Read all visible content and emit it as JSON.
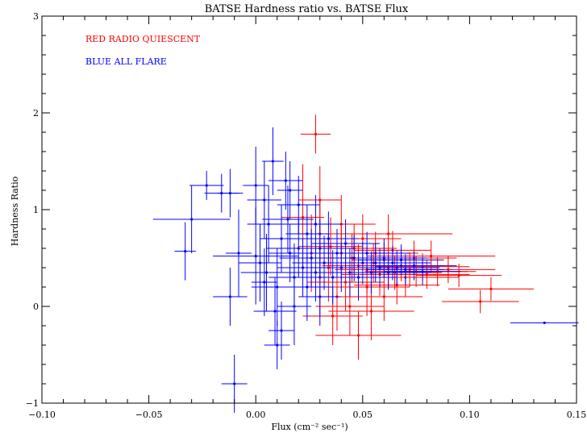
{
  "chart_data": {
    "type": "scatter",
    "title": "BATSE Hardness ratio vs. BATSE Flux",
    "xlabel": "Flux (cm⁻² sec⁻¹)",
    "ylabel": "Hardness Ratio",
    "xlim": [
      -0.1,
      0.15
    ],
    "ylim": [
      -1,
      3
    ],
    "xticks": [
      -0.1,
      -0.05,
      0.0,
      0.05,
      0.1,
      0.15
    ],
    "xtick_labels": [
      "−0.10",
      "−0.05",
      "0.00",
      "0.05",
      "0.10",
      "0.15"
    ],
    "yticks": [
      -1,
      0,
      1,
      2,
      3
    ],
    "ytick_labels": [
      "−1",
      "0",
      "1",
      "2",
      "3"
    ],
    "legend_placement": "top-left",
    "error_bars": true,
    "series": [
      {
        "name": "RED RADIO QUIESCENT",
        "color": "#ff0000",
        "points": [
          [
            0.028,
            1.78,
            0.007,
            0.2
          ],
          [
            0.022,
            0.92,
            0.01,
            0.55
          ],
          [
            0.03,
            0.75,
            0.012,
            0.35
          ],
          [
            0.035,
            0.62,
            0.015,
            0.3
          ],
          [
            0.04,
            0.55,
            0.016,
            0.28
          ],
          [
            0.045,
            0.5,
            0.018,
            0.25
          ],
          [
            0.048,
            0.42,
            0.017,
            0.22
          ],
          [
            0.052,
            0.38,
            0.015,
            0.25
          ],
          [
            0.055,
            0.45,
            0.02,
            0.2
          ],
          [
            0.058,
            0.33,
            0.018,
            0.22
          ],
          [
            0.06,
            0.48,
            0.015,
            0.18
          ],
          [
            0.062,
            0.4,
            0.02,
            0.2
          ],
          [
            0.065,
            0.35,
            0.022,
            0.18
          ],
          [
            0.068,
            0.42,
            0.02,
            0.16
          ],
          [
            0.07,
            0.3,
            0.025,
            0.2
          ],
          [
            0.072,
            0.38,
            0.02,
            0.18
          ],
          [
            0.075,
            0.36,
            0.024,
            0.16
          ],
          [
            0.078,
            0.41,
            0.022,
            0.14
          ],
          [
            0.08,
            0.33,
            0.02,
            0.15
          ],
          [
            0.085,
            0.36,
            0.018,
            0.15
          ],
          [
            0.09,
            0.38,
            0.022,
            0.14
          ],
          [
            0.095,
            0.32,
            0.02,
            0.12
          ],
          [
            0.11,
            0.18,
            0.02,
            0.12
          ],
          [
            0.105,
            0.05,
            0.018,
            0.12
          ],
          [
            0.042,
            0.25,
            0.018,
            0.3
          ],
          [
            0.038,
            0.1,
            0.015,
            0.35
          ],
          [
            0.044,
            0.0,
            0.016,
            0.3
          ],
          [
            0.036,
            -0.1,
            0.014,
            0.3
          ],
          [
            0.046,
            0.6,
            0.02,
            0.25
          ],
          [
            0.05,
            0.7,
            0.018,
            0.25
          ],
          [
            0.052,
            0.2,
            0.02,
            0.3
          ],
          [
            0.056,
            0.55,
            0.02,
            0.22
          ],
          [
            0.064,
            0.58,
            0.018,
            0.2
          ],
          [
            0.066,
            0.22,
            0.02,
            0.2
          ],
          [
            0.074,
            0.5,
            0.02,
            0.18
          ],
          [
            0.054,
            -0.05,
            0.02,
            0.3
          ],
          [
            0.06,
            0.1,
            0.018,
            0.25
          ],
          [
            0.034,
            0.4,
            0.015,
            0.35
          ],
          [
            0.03,
            0.3,
            0.014,
            0.4
          ],
          [
            0.026,
            0.55,
            0.012,
            0.4
          ],
          [
            0.04,
            0.85,
            0.016,
            0.3
          ],
          [
            0.062,
            0.75,
            0.03,
            0.2
          ],
          [
            0.048,
            -0.3,
            0.02,
            0.25
          ],
          [
            0.082,
            0.52,
            0.03,
            0.16
          ],
          [
            0.03,
            1.1,
            0.01,
            0.35
          ]
        ]
      },
      {
        "name": "BLUE ALL FLARE",
        "color": "#0000ff",
        "points": [
          [
            -0.033,
            0.57,
            0.005,
            0.3
          ],
          [
            -0.03,
            0.9,
            0.018,
            0.35
          ],
          [
            -0.023,
            1.25,
            0.008,
            0.15
          ],
          [
            -0.016,
            1.17,
            0.008,
            0.2
          ],
          [
            -0.012,
            1.17,
            0.006,
            0.25
          ],
          [
            -0.012,
            0.1,
            0.008,
            0.3
          ],
          [
            -0.01,
            -0.8,
            0.006,
            0.3
          ],
          [
            -0.008,
            0.55,
            0.006,
            0.45
          ],
          [
            0.0,
            1.25,
            0.006,
            0.4
          ],
          [
            0.0,
            0.52,
            0.02,
            0.5
          ],
          [
            0.002,
            0.45,
            0.01,
            0.4
          ],
          [
            0.004,
            1.1,
            0.008,
            0.4
          ],
          [
            0.005,
            0.35,
            0.012,
            0.4
          ],
          [
            0.006,
            0.85,
            0.01,
            0.4
          ],
          [
            0.008,
            1.5,
            0.005,
            0.35
          ],
          [
            0.009,
            -0.05,
            0.01,
            0.35
          ],
          [
            0.01,
            0.2,
            0.012,
            0.4
          ],
          [
            0.012,
            0.7,
            0.01,
            0.35
          ],
          [
            0.012,
            -0.25,
            0.006,
            0.3
          ],
          [
            0.014,
            1.3,
            0.008,
            0.3
          ],
          [
            0.015,
            0.9,
            0.012,
            0.35
          ],
          [
            0.016,
            0.55,
            0.01,
            0.3
          ],
          [
            0.018,
            0.3,
            0.012,
            0.35
          ],
          [
            0.018,
            0.0,
            0.008,
            0.4
          ],
          [
            0.02,
            1.05,
            0.01,
            0.3
          ],
          [
            0.02,
            0.6,
            0.015,
            0.3
          ],
          [
            0.022,
            0.4,
            0.012,
            0.3
          ],
          [
            0.024,
            0.75,
            0.01,
            0.3
          ],
          [
            0.024,
            0.2,
            0.012,
            0.35
          ],
          [
            0.026,
            0.5,
            0.015,
            0.3
          ],
          [
            0.028,
            0.85,
            0.012,
            0.3
          ],
          [
            0.028,
            0.35,
            0.014,
            0.3
          ],
          [
            0.03,
            0.6,
            0.016,
            0.3
          ],
          [
            0.03,
            0.1,
            0.01,
            0.3
          ],
          [
            0.032,
            0.45,
            0.015,
            0.28
          ],
          [
            0.034,
            0.7,
            0.014,
            0.28
          ],
          [
            0.036,
            0.3,
            0.016,
            0.28
          ],
          [
            0.038,
            0.55,
            0.016,
            0.25
          ],
          [
            0.04,
            0.4,
            0.018,
            0.25
          ],
          [
            0.042,
            0.65,
            0.016,
            0.25
          ],
          [
            0.044,
            0.35,
            0.018,
            0.25
          ],
          [
            0.046,
            0.5,
            0.018,
            0.24
          ],
          [
            0.048,
            0.3,
            0.018,
            0.24
          ],
          [
            0.05,
            0.45,
            0.018,
            0.22
          ],
          [
            0.052,
            0.55,
            0.02,
            0.22
          ],
          [
            0.054,
            0.35,
            0.02,
            0.22
          ],
          [
            0.056,
            0.45,
            0.018,
            0.2
          ],
          [
            0.058,
            0.4,
            0.018,
            0.2
          ],
          [
            0.06,
            0.5,
            0.02,
            0.2
          ],
          [
            0.062,
            0.35,
            0.02,
            0.18
          ],
          [
            0.064,
            0.45,
            0.018,
            0.18
          ],
          [
            0.066,
            0.4,
            0.02,
            0.18
          ],
          [
            0.068,
            0.48,
            0.02,
            0.16
          ],
          [
            0.07,
            0.38,
            0.018,
            0.16
          ],
          [
            0.074,
            0.42,
            0.02,
            0.15
          ],
          [
            0.078,
            0.36,
            0.018,
            0.14
          ],
          [
            0.135,
            -0.17,
            0.016,
            0.0
          ],
          [
            0.01,
            -0.4,
            0.006,
            0.25
          ],
          [
            0.004,
            0.25,
            0.006,
            0.35
          ],
          [
            0.016,
            1.2,
            0.006,
            0.3
          ]
        ]
      }
    ]
  }
}
